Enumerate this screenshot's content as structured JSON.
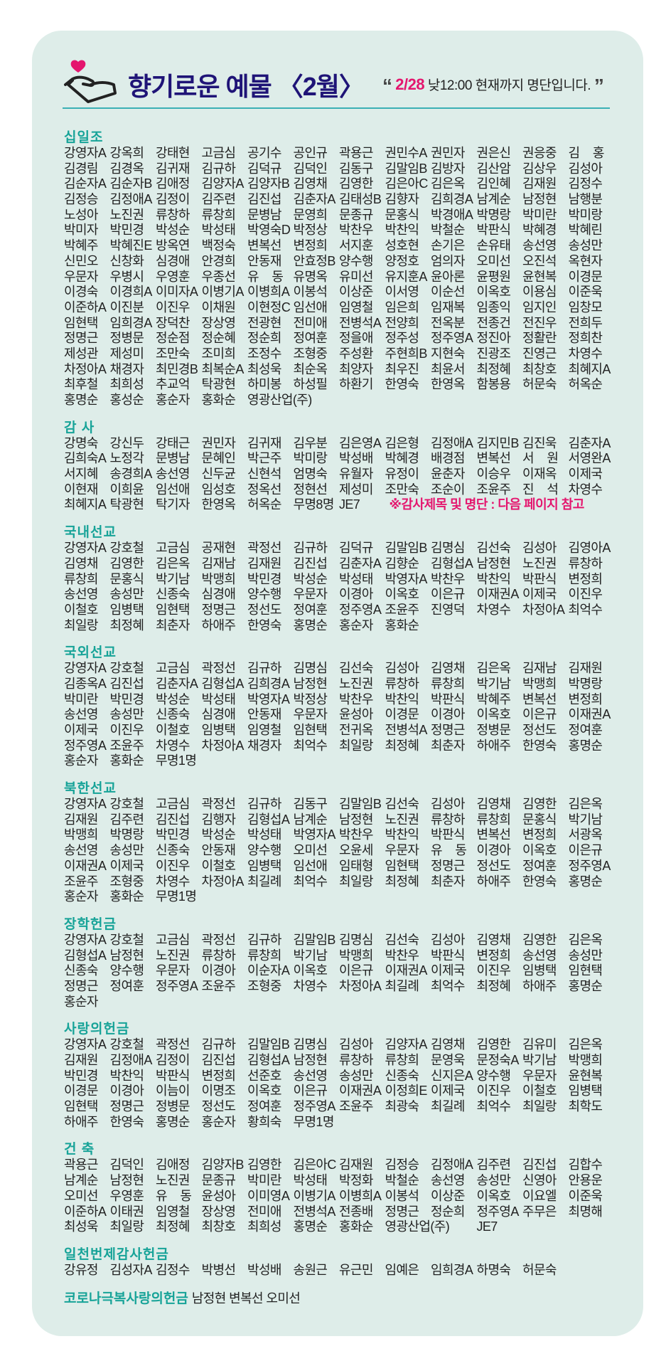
{
  "header": {
    "title": "향기로운 예물 〈2월〉",
    "open_quote": "“",
    "note_date": "2/28",
    "note_text": " 낮12:00 현재까지 명단입니다.",
    "close_quote": "”",
    "icon": "hand-heart-icon"
  },
  "colors": {
    "card_bg": "#deede9",
    "title": "#1f1477",
    "section_heading": "#17a398",
    "accent": "#e4166e",
    "rule": "#3bb0b5"
  },
  "sections": [
    {
      "title": "십일조",
      "names": [
        "강영자A",
        "강옥희",
        "강태현",
        "고금심",
        "공기수",
        "공인규",
        "곽용근",
        "권민수A",
        "권민자",
        "권은신",
        "권응중",
        "김 홍",
        "김경림",
        "김경옥",
        "김귀재",
        "김규하",
        "김덕규",
        "김덕인",
        "김동구",
        "김말임B",
        "김방자",
        "김산암",
        "김상우",
        "김성아",
        "김순자A",
        "김순자B",
        "김애정",
        "김양자A",
        "김양자B",
        "김영채",
        "김영한",
        "김은아C",
        "김은옥",
        "김인혜",
        "김재원",
        "김정수",
        "김정승",
        "김정애A",
        "김정이",
        "김주련",
        "김진섭",
        "김춘자A",
        "김태성B",
        "김향자",
        "김희경A",
        "남계순",
        "남정현",
        "남행분",
        "노성아",
        "노진권",
        "류창하",
        "류창희",
        "문병남",
        "문영희",
        "문종규",
        "문홍식",
        "박경애A",
        "박명랑",
        "박미란",
        "박미랑",
        "박미자",
        "박민경",
        "박성순",
        "박성태",
        "박영숙D",
        "박정상",
        "박찬우",
        "박찬익",
        "박철순",
        "박판식",
        "박혜경",
        "박혜린",
        "박혜주",
        "박혜진E",
        "방옥연",
        "백정숙",
        "변복선",
        "변정희",
        "서지훈",
        "성호현",
        "손기은",
        "손유태",
        "송선영",
        "송성만",
        "신민오",
        "신창화",
        "심경애",
        "안경희",
        "안동재",
        "안효정B",
        "양수행",
        "양정호",
        "엄의자",
        "오미선",
        "오진석",
        "옥현자",
        "우문자",
        "우병시",
        "우영훈",
        "우종선",
        "유 동",
        "유명옥",
        "유미선",
        "유지훈A",
        "윤아론",
        "윤평원",
        "윤현복",
        "이경문",
        "이경숙",
        "이경희A",
        "이미자A",
        "이병기A",
        "이병희A",
        "이봉석",
        "이상준",
        "이서영",
        "이순선",
        "이옥호",
        "이용심",
        "이준욱",
        "이준하A",
        "이진분",
        "이진우",
        "이채원",
        "이현정C",
        "임선애",
        "임영철",
        "임은희",
        "임재복",
        "임종익",
        "임지인",
        "임창모",
        "임현택",
        "임희경A",
        "장덕찬",
        "장상영",
        "전광현",
        "전미애",
        "전병석A",
        "전양희",
        "전옥분",
        "전종건",
        "전진우",
        "전희두",
        "정명근",
        "정병문",
        "정순점",
        "정순혜",
        "정순희",
        "정여훈",
        "정을애",
        "정주성",
        "정주영A",
        "정진아",
        "정활란",
        "정희찬",
        "제성관",
        "제성미",
        "조만숙",
        "조미희",
        "조정수",
        "조형중",
        "주성환",
        "주현희B",
        "지현숙",
        "진광조",
        "진영근",
        "차영수",
        "차정아A",
        "채경자",
        "최민경B",
        "최복순A",
        "최성욱",
        "최순옥",
        "최양자",
        "최우진",
        "최윤서",
        "최정혜",
        "최창호",
        "최혜지A",
        "최후철",
        "최희성",
        "추교억",
        "탁광현",
        "하미봉",
        "하성필",
        "하환기",
        "한영숙",
        "한영옥",
        "함봉용",
        "허문숙",
        "허옥순",
        "홍명순",
        "홍성순",
        "홍순자",
        "홍화순",
        "영광산업(주)"
      ]
    },
    {
      "title": "감 사",
      "names": [
        "강명숙",
        "강신두",
        "강태근",
        "권민자",
        "김귀재",
        "김우분",
        "김은영A",
        "김은형",
        "김정애A",
        "김지민B",
        "김진욱",
        "김춘자A",
        "김희숙A",
        "노정각",
        "문병남",
        "문혜인",
        "박근주",
        "박미랑",
        "박성배",
        "박혜경",
        "배경점",
        "변복선",
        "서 원",
        "서영완A",
        "서지혜",
        "송경희A",
        "송선영",
        "신두균",
        "신현석",
        "엄명숙",
        "유월자",
        "유정이",
        "윤춘자",
        "이승우",
        "이재옥",
        "이제국",
        "이현재",
        "이희윤",
        "임선애",
        "임성호",
        "정옥선",
        "정현선",
        "제성미",
        "조만숙",
        "조순이",
        "조윤주",
        "진 석",
        "차영수",
        "최혜지A",
        "탁광현",
        "탁기자",
        "한영옥",
        "허옥순",
        "무명8명",
        "JE7"
      ],
      "note": "※감사제목 및 명단 : 다음 페이지 참고"
    },
    {
      "title": "국내선교",
      "names": [
        "강영자A",
        "강호철",
        "고금심",
        "공재현",
        "곽정선",
        "김규하",
        "김덕규",
        "김말임B",
        "김명심",
        "김선숙",
        "김성아",
        "김영아A",
        "김영채",
        "김영한",
        "김은옥",
        "김재남",
        "김재원",
        "김진섭",
        "김춘자A",
        "김향순",
        "김형섭A",
        "남정현",
        "노진권",
        "류창하",
        "류창희",
        "문홍식",
        "박기남",
        "박맹희",
        "박민경",
        "박성순",
        "박성태",
        "박영자A",
        "박찬우",
        "박찬익",
        "박판식",
        "변정희",
        "송선영",
        "송성만",
        "신종숙",
        "심경애",
        "양수행",
        "우문자",
        "이경아",
        "이옥호",
        "이은규",
        "이재권A",
        "이제국",
        "이진우",
        "이철호",
        "임병택",
        "임현택",
        "정명근",
        "정선도",
        "정여훈",
        "정주영A",
        "조윤주",
        "진영덕",
        "차영수",
        "차정아A",
        "최억수",
        "최일랑",
        "최정혜",
        "최춘자",
        "하애주",
        "한영숙",
        "홍명순",
        "홍순자",
        "홍화순"
      ]
    },
    {
      "title": "국외선교",
      "names": [
        "강영자A",
        "강호철",
        "고금심",
        "곽정선",
        "김규하",
        "김명심",
        "김선숙",
        "김성아",
        "김영채",
        "김은옥",
        "김재남",
        "김재원",
        "김종옥A",
        "김진섭",
        "김춘자A",
        "김형섭A",
        "김희경A",
        "남정현",
        "노진권",
        "류창하",
        "류창희",
        "박기남",
        "박맹희",
        "박명랑",
        "박미란",
        "박민경",
        "박성순",
        "박성태",
        "박영자A",
        "박정상",
        "박찬우",
        "박찬익",
        "박판식",
        "박혜주",
        "변복선",
        "변정희",
        "송선영",
        "송성만",
        "신종숙",
        "심경애",
        "안동재",
        "우문자",
        "윤성아",
        "이경문",
        "이경아",
        "이옥호",
        "이은규",
        "이재권A",
        "이제국",
        "이진우",
        "이철호",
        "임병택",
        "임영철",
        "임현택",
        "전귀옥",
        "전병석A",
        "정명근",
        "정병문",
        "정선도",
        "정여훈",
        "정주영A",
        "조윤주",
        "차영수",
        "차정아A",
        "채경자",
        "최억수",
        "최일랑",
        "최정혜",
        "최춘자",
        "하애주",
        "한영숙",
        "홍명순",
        "홍순자",
        "홍화순",
        "무명1명"
      ]
    },
    {
      "title": "북한선교",
      "names": [
        "강영자A",
        "강호철",
        "고금심",
        "곽정선",
        "김규하",
        "김동구",
        "김말임B",
        "김선숙",
        "김성아",
        "김영채",
        "김영한",
        "김은옥",
        "김재원",
        "김주련",
        "김진섭",
        "김행자",
        "김형섭A",
        "남계순",
        "남정현",
        "노진권",
        "류창하",
        "류창희",
        "문홍식",
        "박기남",
        "박맹희",
        "박명랑",
        "박민경",
        "박성순",
        "박성태",
        "박영자A",
        "박찬우",
        "박찬익",
        "박판식",
        "변복선",
        "변정희",
        "서광옥",
        "송선영",
        "송성만",
        "신종숙",
        "안동재",
        "양수행",
        "오미선",
        "오윤세",
        "우문자",
        "유 동",
        "이경아",
        "이옥호",
        "이은규",
        "이재권A",
        "이제국",
        "이진우",
        "이철호",
        "임병택",
        "임선애",
        "임태형",
        "임현택",
        "정명근",
        "정선도",
        "정여훈",
        "정주영A",
        "조윤주",
        "조형중",
        "차영수",
        "차정아A",
        "최길례",
        "최억수",
        "최일랑",
        "최정혜",
        "최춘자",
        "하애주",
        "한영숙",
        "홍명순",
        "홍순자",
        "홍화순",
        "무명1명"
      ]
    },
    {
      "title": "장학헌금",
      "names": [
        "강영자A",
        "강호철",
        "고금심",
        "곽정선",
        "김규하",
        "김말임B",
        "김명심",
        "김선숙",
        "김성아",
        "김영채",
        "김영한",
        "김은옥",
        "김형섭A",
        "남정현",
        "노진권",
        "류창하",
        "류창희",
        "박기남",
        "박맹희",
        "박찬우",
        "박판식",
        "변정희",
        "송선영",
        "송성만",
        "신종숙",
        "양수행",
        "우문자",
        "이경아",
        "이순자A",
        "이옥호",
        "이은규",
        "이재권A",
        "이제국",
        "이진우",
        "임병택",
        "임현택",
        "정명근",
        "정여훈",
        "정주영A",
        "조윤주",
        "조형중",
        "차영수",
        "차정아A",
        "최길례",
        "최억수",
        "최정혜",
        "하애주",
        "홍명순",
        "홍순자"
      ]
    },
    {
      "title": "사랑의헌금",
      "names": [
        "강영자A",
        "강호철",
        "곽정선",
        "김규하",
        "김말임B",
        "김명심",
        "김성아",
        "김양자A",
        "김영채",
        "김영한",
        "김유미",
        "김은옥",
        "김재원",
        "김정애A",
        "김정이",
        "김진섭",
        "김형섭A",
        "남정현",
        "류창하",
        "류창희",
        "문영욱",
        "문정숙A",
        "박기남",
        "박맹희",
        "박민경",
        "박찬익",
        "박판식",
        "변정희",
        "선준호",
        "송선영",
        "송성만",
        "신종숙",
        "신지은A",
        "양수행",
        "우문자",
        "윤현복",
        "이경문",
        "이경아",
        "이늠이",
        "이명조",
        "이옥호",
        "이은규",
        "이재권A",
        "이정희E",
        "이제국",
        "이진우",
        "이철호",
        "임병택",
        "임현택",
        "정명근",
        "정병문",
        "정선도",
        "정여훈",
        "정주영A",
        "조윤주",
        "최광숙",
        "최길례",
        "최억수",
        "최일랑",
        "최학도",
        "하애주",
        "한영숙",
        "홍명순",
        "홍순자",
        "황희숙",
        "무명1명"
      ]
    },
    {
      "title": "건 축",
      "names": [
        "곽용근",
        "김덕인",
        "김애정",
        "김양자B",
        "김영한",
        "김은아C",
        "김재원",
        "김정승",
        "김정애A",
        "김주련",
        "김진섭",
        "김합수",
        "남계순",
        "남정현",
        "노진권",
        "문종규",
        "박미란",
        "박성태",
        "박정화",
        "박철순",
        "송선영",
        "송성만",
        "신영아",
        "안용운",
        "오미선",
        "우영훈",
        "유 동",
        "윤성아",
        "이미영A",
        "이병기A",
        "이병희A",
        "이봉석",
        "이상준",
        "이옥호",
        "이요엘",
        "이준욱",
        "이준하A",
        "이태권",
        "임영철",
        "장상영",
        "전미애",
        "전병석A",
        "전종배",
        "정명근",
        "정순희",
        "정주영A",
        "주무은",
        "최명해",
        "최성욱",
        "최일랑",
        "최정혜",
        "최창호",
        "최희성",
        "홍명순",
        "홍화순",
        "영광산업(주)",
        "JE7"
      ]
    },
    {
      "title": "일천번제감사헌금",
      "names": [
        "강유정",
        "김성자A",
        "김정수",
        "박병선",
        "박성배",
        "송원근",
        "유근민",
        "임예은",
        "임희경A",
        "하명숙",
        "허문숙"
      ]
    }
  ],
  "corona": {
    "title": "코로나극복사랑의헌금",
    "names": "남정현 변복선 오미선"
  }
}
